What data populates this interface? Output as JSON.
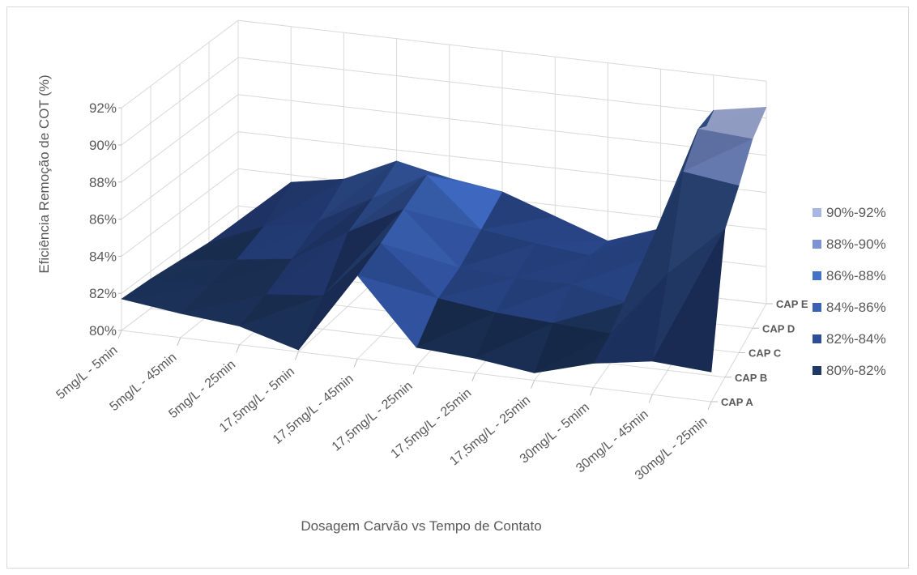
{
  "chart_data": {
    "type": "surface-3d",
    "title": "",
    "xlabel": "Dosagem Carvão vs Tempo de Contato",
    "ylabel": "Eficiência Remoção de COT (%)",
    "zlim": [
      80,
      92
    ],
    "ticks": [
      "80%",
      "82%",
      "84%",
      "86%",
      "88%",
      "90%",
      "92%"
    ],
    "categories": [
      "5mg/L - 5min",
      "5mg/L - 45min",
      "5mg/L - 25min",
      "17,5mg/L - 5min",
      "17,5mg/L - 45min",
      "17,5mg/L - 25min",
      "17,5mg/L - 25min",
      "17,5mg/L - 25min",
      "30mg/L - 5mim",
      "30mg/L - 45min",
      "30mg/L - 25min"
    ],
    "depth_series": [
      "CAP A",
      "CAP B",
      "CAP C",
      "CAP D",
      "CAP E"
    ],
    "series": [
      {
        "name": "CAP A",
        "values": [
          81.7,
          81.3,
          81.0,
          80.1,
          84.5,
          81.0,
          80.8,
          80.4,
          81.3,
          81.8,
          81.6
        ]
      },
      {
        "name": "CAP B",
        "values": [
          81.6,
          81.6,
          81.5,
          81.8,
          85.0,
          82.4,
          82.0,
          81.8,
          81.6,
          85.2,
          88.0
        ]
      },
      {
        "name": "CAP C",
        "values": [
          81.4,
          81.8,
          82.2,
          84.0,
          85.6,
          82.8,
          82.6,
          82.6,
          82.0,
          89.4,
          89.0
        ]
      },
      {
        "name": "CAP D",
        "values": [
          81.2,
          82.4,
          83.0,
          84.6,
          86.2,
          83.6,
          83.2,
          82.9,
          83.0,
          90.4,
          90.2
        ]
      },
      {
        "name": "CAP E",
        "values": [
          81.0,
          83.6,
          84.1,
          85.4,
          84.8,
          84.4,
          83.4,
          82.4,
          83.4,
          90.1,
          90.6
        ]
      }
    ],
    "legend": {
      "position": "right",
      "bands": [
        {
          "label": "90%-92%",
          "color": "#a8b6e3"
        },
        {
          "label": "88%-90%",
          "color": "#7b92d3"
        },
        {
          "label": "86%-88%",
          "color": "#4472c4"
        },
        {
          "label": "84%-86%",
          "color": "#3a62b4"
        },
        {
          "label": "82%-84%",
          "color": "#2d4d96"
        },
        {
          "label": "80%-82%",
          "color": "#1f3864"
        }
      ]
    },
    "grid": true
  }
}
